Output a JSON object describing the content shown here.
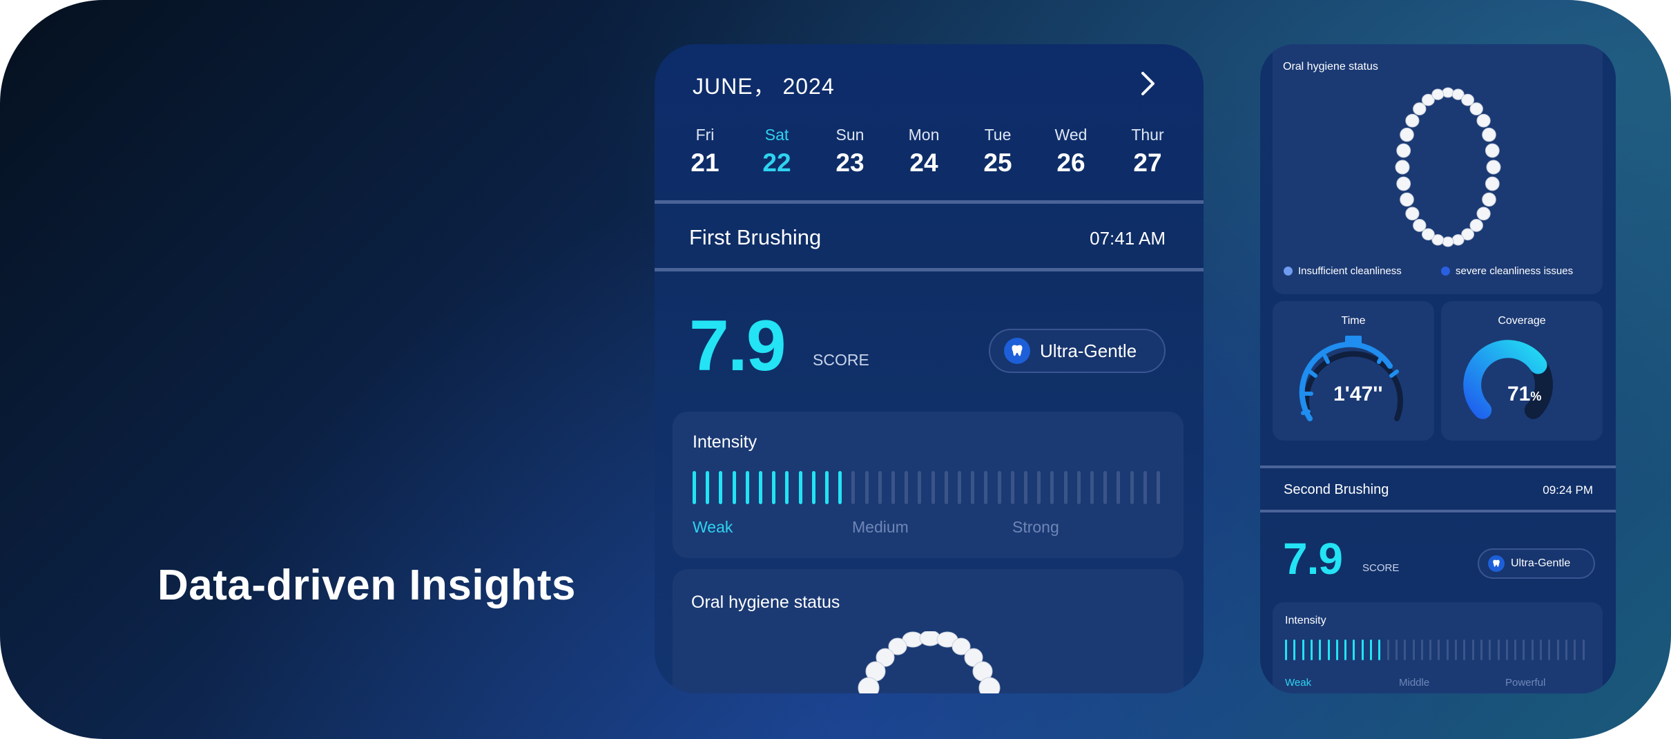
{
  "headline": "Data-driven Insights",
  "phone1": {
    "month": "JUNE， 2024",
    "days": [
      {
        "name": "Fri",
        "date": "21"
      },
      {
        "name": "Sat",
        "date": "22"
      },
      {
        "name": "Sun",
        "date": "23"
      },
      {
        "name": "Mon",
        "date": "24"
      },
      {
        "name": "Tue",
        "date": "25"
      },
      {
        "name": "Wed",
        "date": "26"
      },
      {
        "name": "Thur",
        "date": "27"
      }
    ],
    "selected_day": "22",
    "brushing_title": "First Brushing",
    "brushing_time": "07:41 AM",
    "score": "7.9",
    "score_label": "SCORE",
    "mode": "Ultra-Gentle",
    "intensity_title": "Intensity",
    "intensity_levels": [
      "Weak",
      "Medium",
      "Strong"
    ],
    "intensity_active": 12,
    "intensity_total": 36,
    "oral_title": "Oral hygiene status"
  },
  "phone2": {
    "oral_title": "Oral hygiene status",
    "legend": [
      {
        "label": "Insufficient cleanliness",
        "color": "#6f9cf0"
      },
      {
        "label": "severe cleanliness issues",
        "color": "#2a5fe0"
      }
    ],
    "time_title": "Time",
    "time_value": "1'47''",
    "coverage_title": "Coverage",
    "coverage_value": "71",
    "coverage_unit": "%",
    "coverage_fraction": 0.71,
    "brushing_title": "Second Brushing",
    "brushing_time": "09:24 PM",
    "score": "7.9",
    "score_label": "SCORE",
    "mode": "Ultra-Gentle",
    "intensity_title": "Intensity",
    "intensity_levels": [
      "Weak",
      "Middle",
      "Powerful"
    ],
    "intensity_active": 12,
    "intensity_total": 36
  },
  "colors": {
    "accent": "#23e3f4",
    "inactive_bar": "#3b5589",
    "card": "#1b3a74"
  }
}
